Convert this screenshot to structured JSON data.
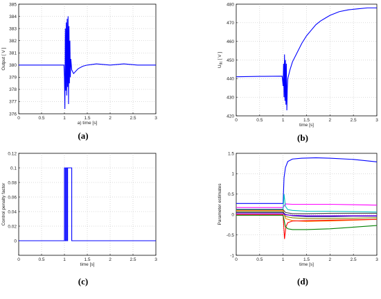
{
  "chart_data": [
    {
      "id": "a",
      "type": "line",
      "panel_label": "(a)",
      "xlabel": "a) time [s]",
      "ylabel": "Output [ V ]",
      "xlim": [
        0,
        3
      ],
      "ylim": [
        376,
        385
      ],
      "xticks": [
        "0",
        "0.5",
        "1",
        "1.5",
        "2",
        "2.5",
        "3"
      ],
      "yticks": [
        "376",
        "377",
        "378",
        "379",
        "380",
        "381",
        "382",
        "383",
        "384",
        "385"
      ],
      "grid": true,
      "series": [
        {
          "color": "#0000ff",
          "x": [
            0,
            0.99,
            1.0,
            1.01,
            1.02,
            1.03,
            1.04,
            1.05,
            1.06,
            1.07,
            1.08,
            1.09,
            1.1,
            1.11,
            1.12,
            1.13,
            1.14,
            1.16,
            1.2,
            1.25,
            1.3,
            1.4,
            1.5,
            1.7,
            2.0,
            2.3,
            2.6,
            3.0
          ],
          "y": [
            380,
            380,
            379,
            376.4,
            383.0,
            377.9,
            383.5,
            377.5,
            383.8,
            378.2,
            384.0,
            376.8,
            383.2,
            378.5,
            382.0,
            379.0,
            380.5,
            379.6,
            379.3,
            379.5,
            379.7,
            379.9,
            380.0,
            380.1,
            380.0,
            380.1,
            380.0,
            380.0
          ]
        }
      ]
    },
    {
      "id": "b",
      "type": "line",
      "panel_label": "(b)",
      "xlabel": "time [s]",
      "ylabel": "U_dc [ V ]",
      "ylabel_main": "U",
      "ylabel_sub": "dc",
      "ylabel_rest": " [ V ]",
      "xlim": [
        0,
        3
      ],
      "ylim": [
        420,
        480
      ],
      "xticks": [
        "0",
        "0.5",
        "1",
        "1.5",
        "2",
        "2.5",
        "3"
      ],
      "yticks": [
        "420",
        "430",
        "440",
        "450",
        "460",
        "470",
        "480"
      ],
      "grid": true,
      "series": [
        {
          "color": "#0000ff",
          "x": [
            0,
            0.5,
            0.98,
            1.0,
            1.01,
            1.02,
            1.03,
            1.04,
            1.05,
            1.06,
            1.07,
            1.08,
            1.09,
            1.1,
            1.12,
            1.15,
            1.2,
            1.3,
            1.4,
            1.5,
            1.6,
            1.7,
            1.8,
            1.9,
            2.0,
            2.2,
            2.4,
            2.6,
            2.8,
            3.0
          ],
          "y": [
            441,
            441.2,
            441.3,
            436,
            448,
            430,
            453,
            428,
            450,
            426,
            448,
            423,
            435,
            440,
            442,
            445,
            449,
            454,
            459,
            463,
            466,
            469,
            471,
            472.5,
            474,
            476,
            477,
            477.5,
            478,
            478
          ]
        }
      ]
    },
    {
      "id": "c",
      "type": "line",
      "panel_label": "(c)",
      "xlabel": "time [s]",
      "ylabel": "Control penalty factor",
      "xlim": [
        0,
        3
      ],
      "ylim": [
        -0.02,
        0.12
      ],
      "xticks": [
        "0",
        "0.5",
        "1",
        "1.5",
        "2",
        "2.5",
        "3"
      ],
      "yticks": [
        "0",
        "0.02",
        "0.04",
        "0.06",
        "0.08",
        "0.1",
        "0.12"
      ],
      "ytick_values": [
        0,
        0.02,
        0.04,
        0.06,
        0.08,
        0.1,
        0.12
      ],
      "grid": true,
      "series": [
        {
          "color": "#0000ff",
          "x": [
            0,
            1.0,
            1.0,
            1.02,
            1.02,
            1.04,
            1.04,
            1.06,
            1.06,
            1.07,
            1.07,
            1.16,
            1.16,
            3.0
          ],
          "y": [
            0,
            0,
            0.1,
            0.1,
            0,
            0,
            0.1,
            0.1,
            0,
            0,
            0.1,
            0.1,
            0,
            0
          ]
        }
      ]
    },
    {
      "id": "d",
      "type": "line",
      "panel_label": "(d)",
      "xlabel": "time [s]",
      "ylabel": "Parameter estimates",
      "xlim": [
        0,
        3
      ],
      "ylim": [
        -1,
        1.5
      ],
      "xticks": [
        "0",
        "0.5",
        "1",
        "1.5",
        "2",
        "2.5",
        "3"
      ],
      "yticks": [
        "-1",
        "-0.5",
        "0",
        "0.5",
        "1",
        "1.5"
      ],
      "ytick_values": [
        -1,
        -0.5,
        0,
        0.5,
        1,
        1.5
      ],
      "grid": true,
      "series": [
        {
          "color": "#0000ff",
          "x": [
            0,
            1.0,
            1.02,
            1.05,
            1.1,
            1.2,
            1.4,
            1.7,
            2.0,
            2.5,
            3.0
          ],
          "y": [
            0.27,
            0.27,
            0.9,
            1.15,
            1.3,
            1.36,
            1.38,
            1.39,
            1.38,
            1.35,
            1.29
          ]
        },
        {
          "color": "#ff00ff",
          "x": [
            0,
            1.0,
            1.05,
            1.2,
            1.5,
            2.0,
            2.5,
            3.0
          ],
          "y": [
            0.17,
            0.17,
            0.26,
            0.25,
            0.25,
            0.25,
            0.24,
            0.23
          ]
        },
        {
          "color": "#00bfbf",
          "x": [
            0,
            1.0,
            1.02,
            1.05,
            1.1,
            1.2,
            1.5,
            2.0,
            2.5,
            3.0
          ],
          "y": [
            0.13,
            0.13,
            0.5,
            0.2,
            0.12,
            0.1,
            0.08,
            0.08,
            0.07,
            0.06
          ]
        },
        {
          "color": "#ff8000",
          "x": [
            0,
            1.0,
            1.05,
            1.2,
            1.5,
            2.0,
            2.5,
            3.0
          ],
          "y": [
            0.1,
            0.1,
            -0.1,
            -0.15,
            -0.17,
            -0.16,
            -0.14,
            -0.12
          ]
        },
        {
          "color": "#808000",
          "x": [
            0,
            1.0,
            1.05,
            1.2,
            1.5,
            2.0,
            2.5,
            3.0
          ],
          "y": [
            0.07,
            0.07,
            -0.05,
            -0.08,
            -0.1,
            -0.1,
            -0.09,
            -0.08
          ]
        },
        {
          "color": "#000080",
          "x": [
            0,
            1.0,
            1.05,
            1.2,
            1.5,
            2.0,
            2.5,
            3.0
          ],
          "y": [
            0.05,
            0.05,
            0.0,
            -0.03,
            -0.05,
            -0.05,
            -0.04,
            -0.04
          ]
        },
        {
          "color": "#8000ff",
          "x": [
            0,
            1.0,
            1.05,
            1.2,
            1.5,
            2.0,
            2.5,
            3.0
          ],
          "y": [
            0.02,
            0.02,
            -0.01,
            -0.02,
            -0.03,
            -0.03,
            -0.03,
            -0.03
          ]
        },
        {
          "color": "#ff0000",
          "x": [
            0,
            1.0,
            1.03,
            1.06,
            1.1,
            1.2,
            1.5,
            2.0,
            2.5,
            3.0
          ],
          "y": [
            0.0,
            0.0,
            -0.6,
            -0.3,
            -0.2,
            -0.16,
            -0.15,
            -0.14,
            -0.13,
            -0.12
          ]
        },
        {
          "color": "#008000",
          "x": [
            0,
            1.0,
            1.05,
            1.1,
            1.2,
            1.5,
            2.0,
            2.5,
            3.0
          ],
          "y": [
            -0.02,
            -0.02,
            -0.3,
            -0.35,
            -0.37,
            -0.37,
            -0.35,
            -0.31,
            -0.27
          ]
        },
        {
          "color": "#404040",
          "x": [
            0,
            1.0,
            1.05,
            1.2,
            1.5,
            2.0,
            2.5,
            3.0
          ],
          "y": [
            0.12,
            0.12,
            0.05,
            0.02,
            0.02,
            0.03,
            0.03,
            0.03
          ]
        }
      ]
    }
  ]
}
